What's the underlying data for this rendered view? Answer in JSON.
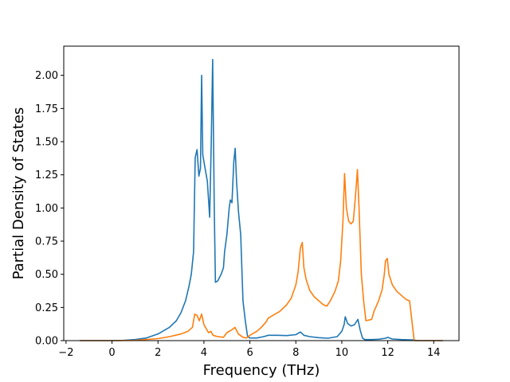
{
  "chart_data": {
    "type": "line",
    "title": "",
    "xlabel": "Frequency (THz)",
    "ylabel": "Partial Density of States",
    "xlim": [
      -2.1,
      15.1
    ],
    "ylim": [
      0.0,
      2.22
    ],
    "xticks": [
      -2,
      0,
      2,
      4,
      6,
      8,
      10,
      12,
      14
    ],
    "xtick_labels": [
      "−2",
      "0",
      "2",
      "4",
      "6",
      "8",
      "10",
      "12",
      "14"
    ],
    "yticks": [
      0.0,
      0.25,
      0.5,
      0.75,
      1.0,
      1.25,
      1.5,
      1.75,
      2.0
    ],
    "ytick_labels": [
      "0.00",
      "0.25",
      "0.50",
      "0.75",
      "1.00",
      "1.25",
      "1.50",
      "1.75",
      "2.00"
    ],
    "grid": false,
    "legend": "none",
    "series": [
      {
        "color": "#1f77b4",
        "points": [
          [
            -1.4,
            0.0
          ],
          [
            0.0,
            0.0
          ],
          [
            0.5,
            0.002
          ],
          [
            1.0,
            0.008
          ],
          [
            1.5,
            0.02
          ],
          [
            2.0,
            0.05
          ],
          [
            2.5,
            0.1
          ],
          [
            2.8,
            0.15
          ],
          [
            3.0,
            0.21
          ],
          [
            3.2,
            0.3
          ],
          [
            3.35,
            0.41
          ],
          [
            3.45,
            0.5
          ],
          [
            3.55,
            0.67
          ],
          [
            3.62,
            1.38
          ],
          [
            3.7,
            1.44
          ],
          [
            3.78,
            1.24
          ],
          [
            3.85,
            1.3
          ],
          [
            3.9,
            2.0
          ],
          [
            3.95,
            1.4
          ],
          [
            4.05,
            1.3
          ],
          [
            4.15,
            1.2
          ],
          [
            4.25,
            0.93
          ],
          [
            4.32,
            1.5
          ],
          [
            4.38,
            2.12
          ],
          [
            4.45,
            1.0
          ],
          [
            4.5,
            0.44
          ],
          [
            4.6,
            0.45
          ],
          [
            4.75,
            0.5
          ],
          [
            4.85,
            0.55
          ],
          [
            4.9,
            0.67
          ],
          [
            5.0,
            0.8
          ],
          [
            5.1,
            1.0
          ],
          [
            5.15,
            1.06
          ],
          [
            5.22,
            1.04
          ],
          [
            5.3,
            1.35
          ],
          [
            5.36,
            1.45
          ],
          [
            5.42,
            1.2
          ],
          [
            5.5,
            0.98
          ],
          [
            5.6,
            0.8
          ],
          [
            5.7,
            0.3
          ],
          [
            5.8,
            0.15
          ],
          [
            5.9,
            0.03
          ],
          [
            6.0,
            0.02
          ],
          [
            6.3,
            0.02
          ],
          [
            6.6,
            0.03
          ],
          [
            6.8,
            0.04
          ],
          [
            7.2,
            0.04
          ],
          [
            7.6,
            0.038
          ],
          [
            8.0,
            0.045
          ],
          [
            8.2,
            0.065
          ],
          [
            8.35,
            0.04
          ],
          [
            8.6,
            0.03
          ],
          [
            9.0,
            0.022
          ],
          [
            9.4,
            0.018
          ],
          [
            9.8,
            0.03
          ],
          [
            10.0,
            0.07
          ],
          [
            10.1,
            0.12
          ],
          [
            10.15,
            0.18
          ],
          [
            10.25,
            0.13
          ],
          [
            10.4,
            0.11
          ],
          [
            10.55,
            0.12
          ],
          [
            10.7,
            0.16
          ],
          [
            10.8,
            0.08
          ],
          [
            10.9,
            0.02
          ],
          [
            11.0,
            0.008
          ],
          [
            11.3,
            0.008
          ],
          [
            11.6,
            0.01
          ],
          [
            11.9,
            0.018
          ],
          [
            12.0,
            0.025
          ],
          [
            12.2,
            0.012
          ],
          [
            12.6,
            0.008
          ],
          [
            13.1,
            0.005
          ],
          [
            13.3,
            0.0
          ],
          [
            14.4,
            0.0
          ]
        ]
      },
      {
        "color": "#ff7f0e",
        "points": [
          [
            -1.4,
            0.0
          ],
          [
            0.0,
            0.0
          ],
          [
            1.0,
            0.002
          ],
          [
            2.0,
            0.015
          ],
          [
            2.5,
            0.03
          ],
          [
            3.0,
            0.05
          ],
          [
            3.3,
            0.07
          ],
          [
            3.5,
            0.1
          ],
          [
            3.6,
            0.2
          ],
          [
            3.7,
            0.19
          ],
          [
            3.8,
            0.15
          ],
          [
            3.9,
            0.2
          ],
          [
            4.0,
            0.12
          ],
          [
            4.2,
            0.06
          ],
          [
            4.3,
            0.07
          ],
          [
            4.4,
            0.04
          ],
          [
            4.6,
            0.03
          ],
          [
            4.85,
            0.025
          ],
          [
            5.0,
            0.06
          ],
          [
            5.2,
            0.08
          ],
          [
            5.35,
            0.1
          ],
          [
            5.5,
            0.05
          ],
          [
            5.7,
            0.025
          ],
          [
            5.85,
            0.02
          ],
          [
            6.0,
            0.04
          ],
          [
            6.3,
            0.07
          ],
          [
            6.5,
            0.1
          ],
          [
            6.7,
            0.14
          ],
          [
            6.8,
            0.17
          ],
          [
            7.0,
            0.19
          ],
          [
            7.3,
            0.22
          ],
          [
            7.6,
            0.27
          ],
          [
            7.8,
            0.32
          ],
          [
            8.0,
            0.42
          ],
          [
            8.1,
            0.52
          ],
          [
            8.2,
            0.7
          ],
          [
            8.28,
            0.74
          ],
          [
            8.35,
            0.55
          ],
          [
            8.45,
            0.46
          ],
          [
            8.6,
            0.38
          ],
          [
            8.8,
            0.33
          ],
          [
            9.0,
            0.3
          ],
          [
            9.2,
            0.27
          ],
          [
            9.35,
            0.26
          ],
          [
            9.5,
            0.3
          ],
          [
            9.7,
            0.37
          ],
          [
            9.85,
            0.45
          ],
          [
            9.95,
            0.6
          ],
          [
            10.05,
            0.9
          ],
          [
            10.12,
            1.26
          ],
          [
            10.2,
            1.0
          ],
          [
            10.3,
            0.9
          ],
          [
            10.4,
            0.88
          ],
          [
            10.5,
            0.9
          ],
          [
            10.6,
            1.1
          ],
          [
            10.68,
            1.29
          ],
          [
            10.75,
            1.0
          ],
          [
            10.85,
            0.5
          ],
          [
            10.95,
            0.3
          ],
          [
            11.05,
            0.15
          ],
          [
            11.3,
            0.16
          ],
          [
            11.4,
            0.22
          ],
          [
            11.6,
            0.3
          ],
          [
            11.75,
            0.38
          ],
          [
            11.85,
            0.5
          ],
          [
            11.9,
            0.6
          ],
          [
            11.98,
            0.62
          ],
          [
            12.05,
            0.5
          ],
          [
            12.2,
            0.42
          ],
          [
            12.4,
            0.37
          ],
          [
            12.6,
            0.34
          ],
          [
            12.8,
            0.31
          ],
          [
            12.95,
            0.3
          ],
          [
            13.05,
            0.15
          ],
          [
            13.15,
            0.0
          ],
          [
            14.4,
            0.0
          ]
        ]
      }
    ]
  }
}
